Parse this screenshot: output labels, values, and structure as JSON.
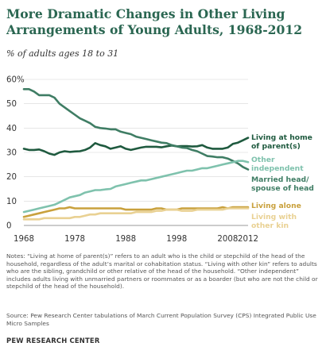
{
  "header": {
    "title_line1": "More Dramatic Changes in Other Living",
    "title_line2": "Arrangements of Young Adults, 1968-2012",
    "subtitle": "% of adults ages 18 to 31"
  },
  "chart_data": {
    "type": "line",
    "title": "More Dramatic Changes in Other Living Arrangements of Young Adults, 1968-2012",
    "ylabel": "% of adults ages 18 to 31",
    "xlim": [
      1968,
      2012
    ],
    "ylim": [
      0,
      60
    ],
    "x_ticks": [
      1968,
      1978,
      1988,
      1998,
      2008,
      2012
    ],
    "x_tick_labels": [
      "1968",
      "1978",
      "1988",
      "1998",
      "2008",
      "2012"
    ],
    "y_ticks": [
      0,
      10,
      20,
      30,
      40,
      50,
      60
    ],
    "y_tick_labels": [
      "0",
      "10",
      "20",
      "30",
      "40",
      "50",
      "60%"
    ],
    "grid": "horizontal",
    "x": [
      1968,
      1969,
      1970,
      1971,
      1972,
      1973,
      1974,
      1975,
      1976,
      1977,
      1978,
      1979,
      1980,
      1981,
      1982,
      1983,
      1984,
      1985,
      1986,
      1987,
      1988,
      1989,
      1990,
      1991,
      1992,
      1993,
      1994,
      1995,
      1996,
      1997,
      1998,
      1999,
      2000,
      2001,
      2002,
      2003,
      2004,
      2005,
      2006,
      2007,
      2008,
      2009,
      2010,
      2011,
      2012
    ],
    "series": [
      {
        "name": "Living at home of parent(s)",
        "label_line1": "Living at home",
        "label_line2": "of parent(s)",
        "color": "#1f5a3f",
        "values": [
          31.5,
          31,
          31,
          31.2,
          30.5,
          29.5,
          29,
          30,
          30.5,
          30.2,
          30.4,
          30.5,
          31,
          32,
          33.8,
          33,
          32.5,
          31.5,
          32,
          32.5,
          31.5,
          31,
          31.5,
          32,
          32.3,
          32.3,
          32.3,
          32.1,
          32.5,
          32.8,
          32.5,
          32.6,
          32.6,
          32.4,
          32.5,
          33,
          32,
          31.5,
          31.5,
          31.5,
          32,
          33.5,
          34,
          35,
          36
        ]
      },
      {
        "name": "Married head/spouse of head",
        "label_line1": "Married head/",
        "label_line2": "spouse of head",
        "color": "#3f7d64",
        "values": [
          56,
          56,
          55,
          53.5,
          53.5,
          53.5,
          52.5,
          50,
          48.5,
          47,
          45.5,
          44,
          43,
          42,
          40.5,
          40,
          39.8,
          39.5,
          39.5,
          38.5,
          38,
          37.5,
          36.5,
          36,
          35.5,
          35,
          34.5,
          34,
          33.8,
          33,
          32.5,
          32,
          31.8,
          31,
          30.5,
          29.5,
          28.5,
          28.3,
          28,
          28,
          27.5,
          26.5,
          25.5,
          24,
          23
        ]
      },
      {
        "name": "Other independent",
        "label_line1": "Other",
        "label_line2": "independent",
        "color": "#7fc2ad",
        "values": [
          5.5,
          6,
          6.5,
          7,
          7.5,
          8,
          8.5,
          9.5,
          10.5,
          11.5,
          12,
          12.5,
          13.5,
          14,
          14.5,
          14.5,
          14.8,
          15,
          16,
          16.5,
          17,
          17.5,
          18,
          18.5,
          18.5,
          19,
          19.5,
          20,
          20.5,
          21,
          21.5,
          22,
          22.5,
          22.5,
          23,
          23.5,
          23.5,
          24,
          24.5,
          25,
          25.5,
          26,
          26.5,
          26.5,
          26
        ]
      },
      {
        "name": "Living alone",
        "label_line1": "Living alone",
        "color": "#c9a13d",
        "values": [
          3.5,
          4,
          4.5,
          5,
          5.5,
          6,
          6.5,
          7,
          7,
          7.5,
          7,
          7,
          7,
          7,
          7,
          7,
          7,
          7,
          7,
          7,
          6.5,
          6.5,
          6.5,
          6.5,
          6.5,
          6.5,
          7,
          7,
          6.5,
          6.5,
          6.5,
          7,
          7,
          7,
          7,
          7,
          7,
          7,
          7,
          7.5,
          7,
          7.5,
          7.5,
          7.5,
          7.5
        ]
      },
      {
        "name": "Living with other kin",
        "label_line1": "Living with",
        "label_line2": "other kin",
        "color": "#e9d193",
        "values": [
          2.5,
          2.5,
          2.5,
          2.5,
          3,
          3,
          3,
          3,
          3,
          3,
          3.5,
          3.5,
          4,
          4.5,
          4.5,
          5,
          5,
          5,
          5,
          5,
          5,
          5,
          5.5,
          5.5,
          5.5,
          5.5,
          6,
          6,
          6.5,
          6.5,
          6.5,
          6,
          6,
          6,
          6.5,
          6.5,
          6.5,
          6.5,
          6.5,
          6.5,
          7,
          7,
          7,
          7,
          7
        ]
      }
    ]
  },
  "notes": {
    "text": "Notes: “Living at home of parent(s)” refers to an adult who is the child or stepchild of the head of the household, regardless of the adult’s marital or cohabitation status. “Living with other kin” refers to adults who are the sibling, grandchild or other relative of the head of the household. “Other independent” includes adults living with unmarried partners or roommates or as a boarder (but who are not the child or stepchild of the head of the household)."
  },
  "source": {
    "text": "Source: Pew Research Center tabulations of March Current Population Survey (CPS) Integrated Public Use Micro Samples"
  },
  "footer": {
    "credit": "PEW RESEARCH CENTER"
  }
}
